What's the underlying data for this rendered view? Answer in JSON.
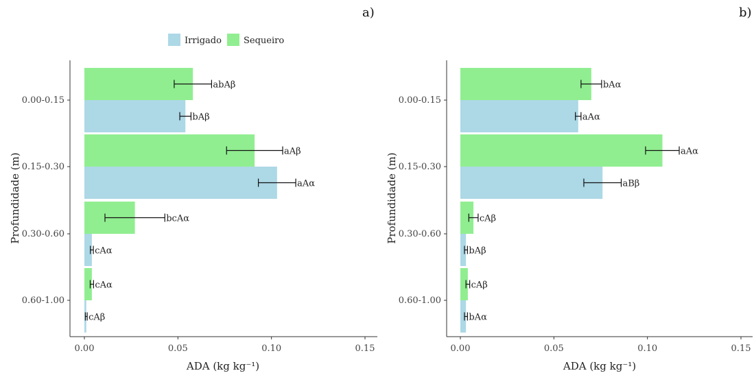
{
  "legend": {
    "items": [
      {
        "label": "Irrigado",
        "color": "#add8e6"
      },
      {
        "label": "Sequeiro",
        "color": "#90ee90"
      }
    ]
  },
  "chart_data": [
    {
      "type": "bar",
      "orientation": "horizontal",
      "panel_label": "a)",
      "xlabel": "ADA (kg kg⁻¹)",
      "ylabel": "Profundidade (m)",
      "xlim": [
        0,
        0.15
      ],
      "xticks": [
        0.0,
        0.05,
        0.1,
        0.15
      ],
      "xtick_labels": [
        "0.00",
        "0.05",
        "0.10",
        "0.15"
      ],
      "categories": [
        "0.00-0.15",
        "0.15-0.30",
        "0.30-0.60",
        "0.60-1.00"
      ],
      "grid": false,
      "legend_position": "top",
      "series": [
        {
          "name": "Irrigado",
          "color": "#add8e6",
          "values": [
            0.054,
            0.103,
            0.004,
            0.001
          ],
          "errors": [
            0.003,
            0.01,
            0.0008,
            0.0005
          ],
          "labels": [
            "bAβ",
            "aAα",
            "cAα",
            "cAβ"
          ]
        },
        {
          "name": "Sequeiro",
          "color": "#90ee90",
          "values": [
            0.058,
            0.091,
            0.027,
            0.004
          ],
          "errors": [
            0.01,
            0.015,
            0.016,
            0.0009
          ],
          "labels": [
            "abAβ",
            "aAβ",
            "bcAα",
            "cAα"
          ]
        }
      ]
    },
    {
      "type": "bar",
      "orientation": "horizontal",
      "panel_label": "b)",
      "xlabel": "ADA (kg kg⁻¹)",
      "ylabel": "Profundidade (m)",
      "xlim": [
        0,
        0.15
      ],
      "xticks": [
        0.0,
        0.05,
        0.1,
        0.15
      ],
      "xtick_labels": [
        "0.00",
        "0.05",
        "0.10",
        "0.15"
      ],
      "categories": [
        "0.00-0.15",
        "0.15-0.30",
        "0.30-0.60",
        "0.60-1.00"
      ],
      "grid": false,
      "legend_position": "top",
      "series": [
        {
          "name": "Irrigado",
          "color": "#add8e6",
          "values": [
            0.063,
            0.076,
            0.003,
            0.003
          ],
          "errors": [
            0.0015,
            0.01,
            0.0008,
            0.0008
          ],
          "labels": [
            "aAα",
            "aBβ",
            "bAβ",
            "bAα"
          ]
        },
        {
          "name": "Sequeiro",
          "color": "#90ee90",
          "values": [
            0.07,
            0.108,
            0.007,
            0.004
          ],
          "errors": [
            0.0055,
            0.009,
            0.0025,
            0.001
          ],
          "labels": [
            "bAα",
            "aAα",
            "cAβ",
            "cAβ"
          ]
        }
      ]
    }
  ]
}
